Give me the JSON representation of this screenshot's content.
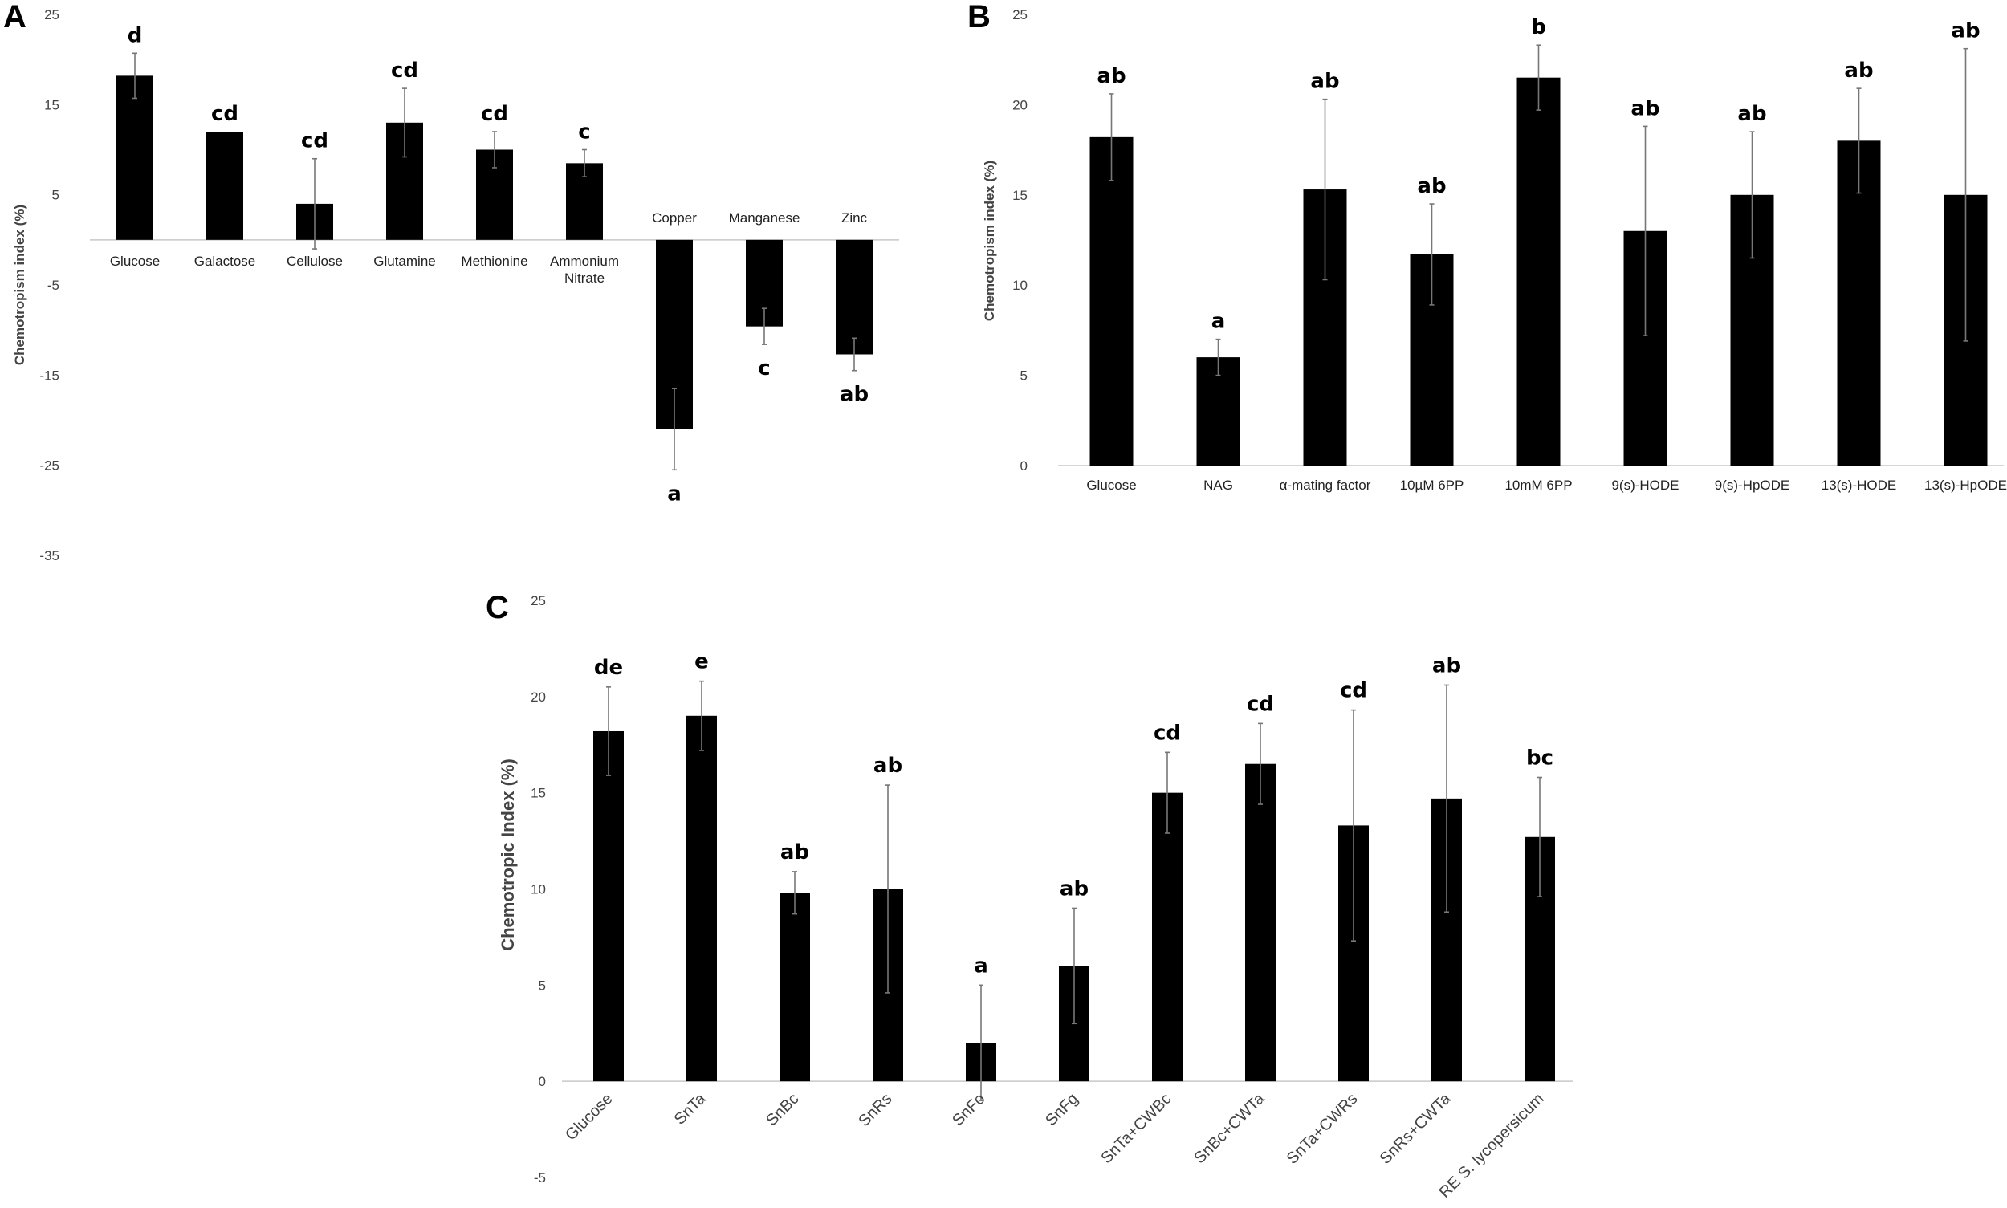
{
  "chart_data": [
    {
      "panel": "A",
      "type": "bar",
      "ylabel": "Chemotropism index (%)",
      "ylim": [
        -35,
        25
      ],
      "yticks": [
        -35,
        -25,
        -15,
        -5,
        5,
        15,
        25
      ],
      "categories": [
        "Glucose",
        "Galactose",
        "Cellulose",
        "Glutamine",
        "Methionine",
        "Ammonium\nNitrate",
        "Copper",
        "Manganese",
        "Zinc"
      ],
      "values": [
        18.2,
        12.0,
        4.0,
        13.0,
        10.0,
        8.5,
        -21.0,
        -9.6,
        -12.7
      ],
      "errors": [
        2.5,
        0.0,
        5.0,
        3.8,
        2.0,
        1.5,
        4.5,
        2.0,
        1.8
      ],
      "significance": [
        "d",
        "cd",
        "cd",
        "cd",
        "cd",
        "c",
        "a",
        "c",
        "ab"
      ],
      "grid": false
    },
    {
      "panel": "B",
      "type": "bar",
      "ylabel": "Chemotropism index (%)",
      "ylim": [
        0,
        25
      ],
      "yticks": [
        0,
        5,
        10,
        15,
        20,
        25
      ],
      "categories": [
        "Glucose",
        "NAG",
        "α-mating factor",
        "10µM 6PP",
        "10mM 6PP",
        "9(s)-HODE",
        "9(s)-HpODE",
        "13(s)-HODE",
        "13(s)-HpODE"
      ],
      "values": [
        18.2,
        6.0,
        15.3,
        11.7,
        21.5,
        13.0,
        15.0,
        18.0,
        15.0
      ],
      "errors": [
        2.4,
        1.0,
        5.0,
        2.8,
        1.8,
        5.8,
        3.5,
        2.9,
        8.1
      ],
      "significance": [
        "ab",
        "a",
        "ab",
        "ab",
        "b",
        "ab",
        "ab",
        "ab",
        "ab"
      ],
      "grid": false
    },
    {
      "panel": "C",
      "type": "bar",
      "ylabel": "Chemotropic Index (%)",
      "ylim": [
        -5,
        25
      ],
      "yticks": [
        -5,
        0,
        5,
        10,
        15,
        20,
        25
      ],
      "categories": [
        "Glucose",
        "SnTa",
        "SnBc",
        "SnRs",
        "SnFo",
        "SnFg",
        "SnTa+CWBc",
        "SnBc+CWTa",
        "SnTa+CWRs",
        "SnRs+CWTa",
        "RE S. lycopersicum"
      ],
      "values": [
        18.2,
        19.0,
        9.8,
        10.0,
        2.0,
        6.0,
        15.0,
        16.5,
        13.3,
        14.7,
        12.7
      ],
      "errors": [
        2.3,
        1.8,
        1.1,
        5.4,
        3.0,
        3.0,
        2.1,
        2.1,
        6.0,
        5.9,
        3.1
      ],
      "significance": [
        "de",
        "e",
        "ab",
        "ab",
        "a",
        "ab",
        "cd",
        "cd",
        "cd",
        "ab",
        "bc"
      ],
      "grid": false
    }
  ],
  "panel_letters": {
    "a": "A",
    "b": "B",
    "c": "C"
  }
}
